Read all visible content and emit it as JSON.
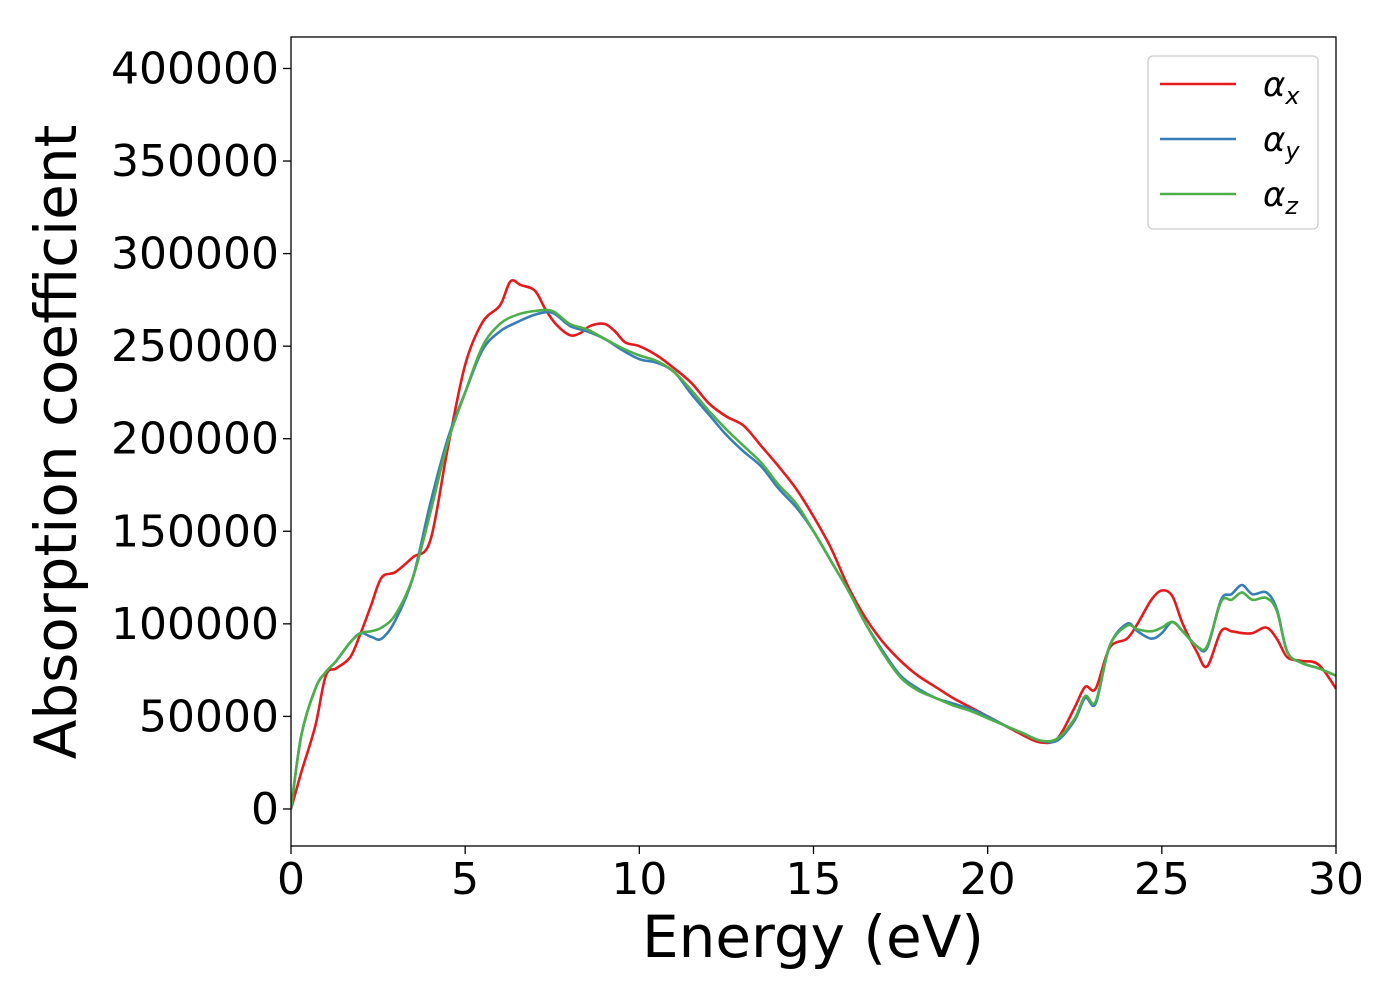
{
  "chart_data": {
    "type": "line",
    "title": "",
    "xlabel": "Energy (eV)",
    "ylabel": "Absorption coefficient",
    "xlim": [
      0,
      30
    ],
    "ylim": [
      -20000,
      417000
    ],
    "xticks": [
      0,
      5,
      10,
      15,
      20,
      25,
      30
    ],
    "yticks": [
      0,
      50000,
      100000,
      150000,
      200000,
      250000,
      300000,
      350000,
      400000
    ],
    "grid": false,
    "legend_position": "top-right",
    "series": [
      {
        "name": "αx",
        "symbol": "α",
        "subscript": "x",
        "color": "#e41a1c",
        "x": [
          0,
          0.3,
          0.7,
          1.0,
          1.3,
          1.7,
          2.0,
          2.3,
          2.6,
          3.0,
          3.5,
          4.0,
          4.5,
          5.0,
          5.5,
          6.0,
          6.3,
          6.6,
          7.0,
          7.3,
          7.6,
          8.0,
          8.3,
          8.6,
          9.0,
          9.3,
          9.6,
          10.0,
          10.5,
          11.0,
          11.5,
          12.0,
          12.5,
          13.0,
          13.5,
          14.0,
          14.5,
          15.0,
          15.5,
          16.0,
          16.5,
          17.0,
          17.5,
          18.0,
          18.5,
          19.0,
          19.5,
          20.0,
          20.5,
          21.0,
          21.5,
          22.0,
          22.5,
          22.8,
          23.1,
          23.5,
          24.0,
          24.3,
          24.7,
          25.0,
          25.3,
          25.6,
          26.0,
          26.3,
          26.7,
          27.0,
          27.3,
          27.6,
          28.0,
          28.3,
          28.6,
          29.0,
          29.5,
          30.0
        ],
        "y": [
          0,
          20000,
          45000,
          72000,
          76000,
          82000,
          95000,
          110000,
          125000,
          128000,
          136000,
          145000,
          195000,
          240000,
          263000,
          272000,
          285000,
          283000,
          280000,
          270000,
          262000,
          256000,
          257000,
          261000,
          262000,
          258000,
          252000,
          250000,
          245000,
          238000,
          230000,
          219000,
          212000,
          207000,
          196000,
          185000,
          173000,
          158000,
          141000,
          120000,
          103000,
          90000,
          80000,
          72000,
          66000,
          60000,
          55000,
          50000,
          45000,
          40000,
          36000,
          38000,
          55000,
          66000,
          65000,
          87000,
          92000,
          100000,
          113000,
          118000,
          115000,
          100000,
          85000,
          77000,
          96000,
          96000,
          95000,
          95000,
          98000,
          92000,
          82000,
          80000,
          78000,
          65000
        ]
      },
      {
        "name": "αy",
        "symbol": "α",
        "subscript": "y",
        "color": "#377eb8",
        "x": [
          0,
          0.3,
          0.7,
          1.0,
          1.3,
          1.7,
          2.0,
          2.3,
          2.6,
          3.0,
          3.5,
          4.0,
          4.5,
          5.0,
          5.5,
          6.0,
          6.5,
          7.0,
          7.5,
          8.0,
          8.5,
          9.0,
          9.5,
          10.0,
          10.5,
          11.0,
          11.5,
          12.0,
          12.5,
          13.0,
          13.5,
          14.0,
          14.5,
          15.0,
          15.5,
          16.0,
          16.5,
          17.0,
          17.5,
          18.0,
          18.5,
          19.0,
          19.5,
          20.0,
          20.5,
          21.0,
          21.5,
          22.0,
          22.5,
          22.8,
          23.1,
          23.5,
          24.0,
          24.3,
          24.7,
          25.0,
          25.3,
          25.6,
          26.0,
          26.3,
          26.7,
          27.0,
          27.3,
          27.6,
          28.0,
          28.3,
          28.6,
          29.0,
          29.5,
          30.0
        ],
        "y": [
          0,
          40000,
          65000,
          74000,
          80000,
          90000,
          95000,
          93000,
          92000,
          102000,
          125000,
          165000,
          200000,
          225000,
          248000,
          258000,
          263000,
          267000,
          268000,
          261000,
          258000,
          254000,
          248000,
          243000,
          241000,
          236000,
          224000,
          213000,
          202000,
          193000,
          185000,
          173000,
          163000,
          150000,
          134000,
          118000,
          100000,
          85000,
          72000,
          65000,
          60000,
          57000,
          54000,
          50000,
          45000,
          41000,
          37000,
          37000,
          48000,
          60000,
          57000,
          88000,
          100000,
          96000,
          92000,
          95000,
          101000,
          96000,
          88000,
          87000,
          113000,
          116000,
          121000,
          116000,
          117000,
          108000,
          85000,
          79000,
          76000,
          72000
        ]
      },
      {
        "name": "αz",
        "symbol": "α",
        "subscript": "z",
        "color": "#4daf4a",
        "x": [
          0,
          0.3,
          0.7,
          1.0,
          1.3,
          1.7,
          2.0,
          2.3,
          2.6,
          3.0,
          3.5,
          4.0,
          4.5,
          5.0,
          5.5,
          6.0,
          6.5,
          7.0,
          7.5,
          8.0,
          8.5,
          9.0,
          9.5,
          10.0,
          10.5,
          11.0,
          11.5,
          12.0,
          12.5,
          13.0,
          13.5,
          14.0,
          14.5,
          15.0,
          15.5,
          16.0,
          16.5,
          17.0,
          17.5,
          18.0,
          18.5,
          19.0,
          19.5,
          20.0,
          20.5,
          21.0,
          21.5,
          22.0,
          22.5,
          22.8,
          23.1,
          23.5,
          24.0,
          24.3,
          24.7,
          25.0,
          25.3,
          25.6,
          26.0,
          26.3,
          26.7,
          27.0,
          27.3,
          27.6,
          28.0,
          28.3,
          28.6,
          29.0,
          29.5,
          30.0
        ],
        "y": [
          0,
          40000,
          65000,
          74000,
          80000,
          90000,
          95000,
          96000,
          98000,
          105000,
          125000,
          160000,
          198000,
          225000,
          250000,
          262000,
          267000,
          269000,
          269000,
          262000,
          259000,
          254000,
          249000,
          245000,
          242000,
          236000,
          226000,
          215000,
          205000,
          196000,
          187000,
          175000,
          165000,
          150000,
          134000,
          118000,
          100000,
          84000,
          71000,
          64000,
          60000,
          56000,
          53000,
          49000,
          45000,
          41000,
          37000,
          38000,
          49000,
          61000,
          58000,
          88000,
          99000,
          97000,
          96000,
          98000,
          101000,
          96000,
          88000,
          88000,
          112000,
          113000,
          117000,
          113000,
          114000,
          107000,
          85000,
          79000,
          76000,
          72000
        ]
      }
    ]
  }
}
